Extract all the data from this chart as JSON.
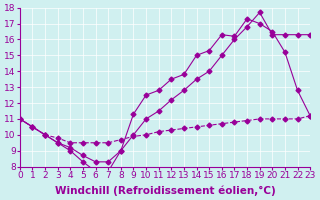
{
  "xlabel": "Windchill (Refroidissement éolien,°C)",
  "ylabel": "",
  "xlim": [
    0,
    23
  ],
  "ylim": [
    8,
    18
  ],
  "yticks": [
    8,
    9,
    10,
    11,
    12,
    13,
    14,
    15,
    16,
    17,
    18
  ],
  "xticks": [
    0,
    1,
    2,
    3,
    4,
    5,
    6,
    7,
    8,
    9,
    10,
    11,
    12,
    13,
    14,
    15,
    16,
    17,
    18,
    19,
    20,
    21,
    22,
    23
  ],
  "bg_color": "#d0f0f0",
  "line_color": "#990099",
  "line1_x": [
    0,
    1,
    2,
    3,
    4,
    5,
    6,
    7,
    8,
    9,
    10,
    11,
    12,
    13,
    14,
    15,
    16,
    17,
    18,
    19,
    20,
    21,
    22,
    23
  ],
  "line1_y": [
    11,
    10.5,
    10,
    9.5,
    9,
    8.3,
    7.7,
    7.7,
    9.0,
    11.3,
    12.5,
    12.8,
    13.5,
    13.8,
    15.0,
    15.3,
    16.3,
    16.2,
    17.3,
    17.0,
    16.5,
    15.2,
    12.8,
    11.2
  ],
  "line2_x": [
    0,
    1,
    2,
    3,
    4,
    5,
    6,
    7,
    8,
    9,
    10,
    11,
    12,
    13,
    14,
    15,
    16,
    17,
    18,
    19,
    20,
    21,
    22,
    23
  ],
  "line2_y": [
    11,
    10.5,
    10,
    9.5,
    9.2,
    8.7,
    8.3,
    8.3,
    9.0,
    10.0,
    11.0,
    11.5,
    12.2,
    12.8,
    13.5,
    14.0,
    15.0,
    16.0,
    16.8,
    17.7,
    16.3,
    16.3,
    16.3,
    16.3
  ],
  "line3_x": [
    0,
    1,
    2,
    3,
    4,
    5,
    6,
    7,
    8,
    9,
    10,
    11,
    12,
    13,
    14,
    15,
    16,
    17,
    18,
    19,
    20,
    21,
    22,
    23
  ],
  "line3_y": [
    11,
    10.5,
    10,
    9.8,
    9.5,
    9.5,
    9.5,
    9.5,
    9.7,
    9.9,
    10.0,
    10.2,
    10.3,
    10.4,
    10.5,
    10.6,
    10.7,
    10.8,
    10.9,
    11.0,
    11.0,
    11.0,
    11.0,
    11.2
  ],
  "tick_fontsize": 6.5,
  "xlabel_fontsize": 7.5
}
